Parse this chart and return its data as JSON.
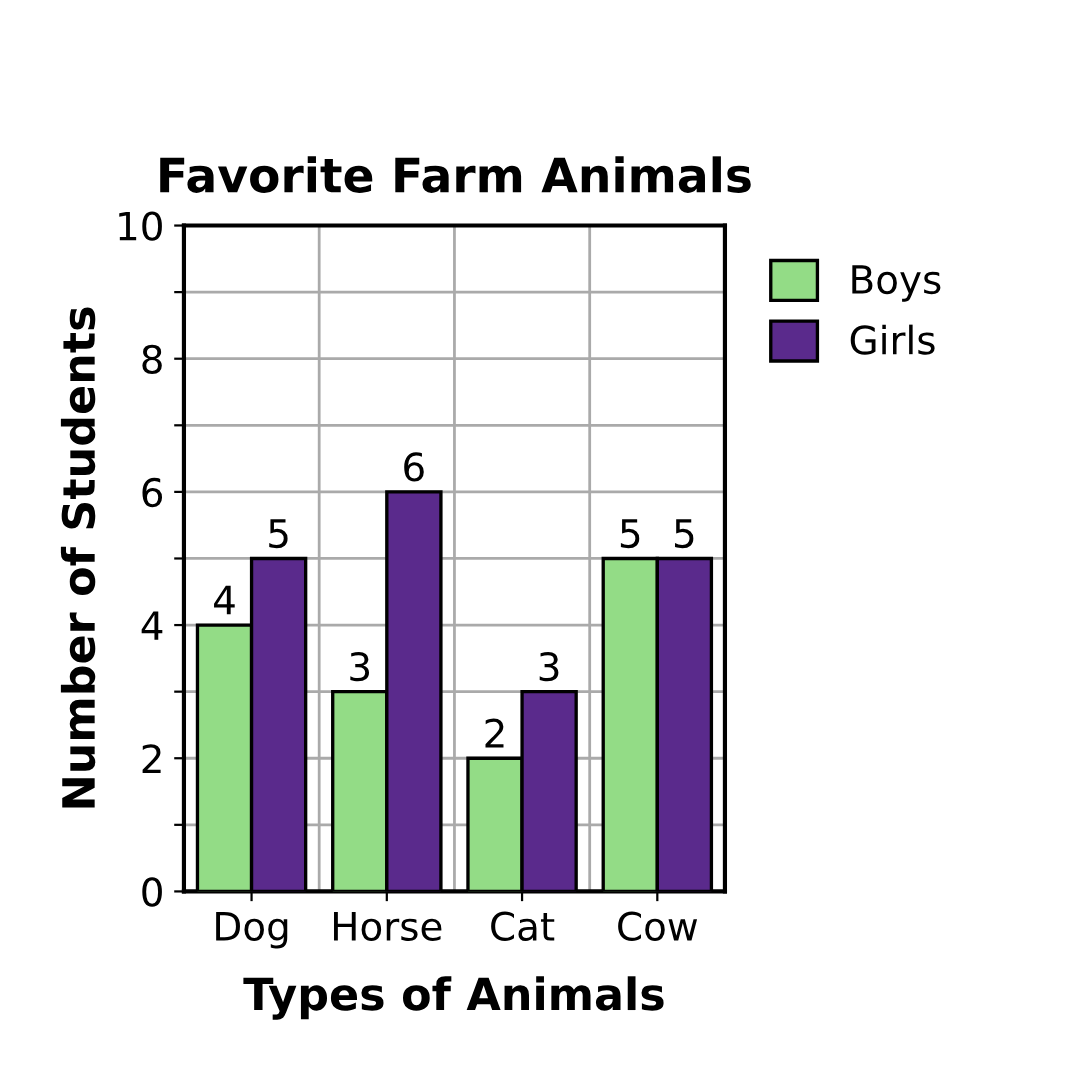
{
  "chart_data": {
    "type": "bar",
    "title": "Favorite Farm Animals",
    "xlabel": "Types of Animals",
    "ylabel": "Number of Students",
    "categories": [
      "Dog",
      "Horse",
      "Cat",
      "Cow"
    ],
    "series": [
      {
        "name": "Boys",
        "color": "#93dc86",
        "values": [
          4,
          3,
          2,
          5
        ]
      },
      {
        "name": "Girls",
        "color": "#5a2a8c",
        "values": [
          5,
          6,
          3,
          5
        ]
      }
    ],
    "ylim": [
      0,
      10
    ],
    "yticks": [
      0,
      {
        "value": 1,
        "label": null
      },
      2,
      {
        "value": 3,
        "label": null
      },
      4,
      {
        "value": 5,
        "label": null
      },
      6,
      {
        "value": 7,
        "label": null
      },
      8,
      {
        "value": 9,
        "label": null
      },
      10
    ],
    "grid": "y",
    "legend": "top right",
    "data_labels": true
  }
}
